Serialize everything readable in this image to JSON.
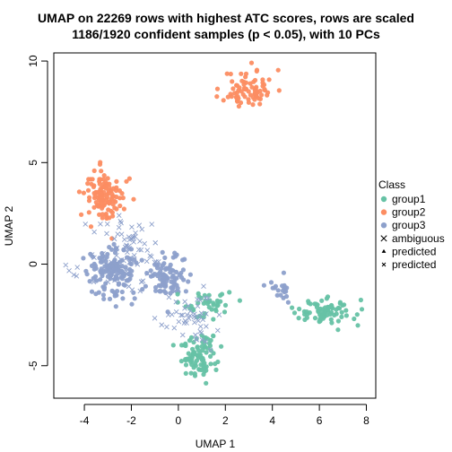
{
  "chart_data": {
    "type": "scatter",
    "title": "UMAP on 22269 rows with highest ATC scores, rows are scaled",
    "subtitle": "1186/1920 confident samples (p < 0.05), with 10 PCs",
    "xlabel": "UMAP 1",
    "ylabel": "UMAP 2",
    "xlim": [
      -5.3,
      8.4
    ],
    "ylim": [
      -6.6,
      10.4
    ],
    "x_ticks": [
      -4,
      -2,
      0,
      2,
      4,
      6,
      8
    ],
    "y_ticks": [
      -5,
      0,
      5,
      10
    ],
    "grid": false,
    "legend_position": "right",
    "legend_title": "Class",
    "legend": [
      {
        "label": "group1",
        "symbol": "circle",
        "color": "#66C2A5"
      },
      {
        "label": "group2",
        "symbol": "circle",
        "color": "#FC8D62"
      },
      {
        "label": "group3",
        "symbol": "circle",
        "color": "#8DA0CB"
      },
      {
        "label": "ambiguous",
        "symbol": "cross",
        "color": "#000000"
      },
      {
        "label": "predicted",
        "symbol": "triangle",
        "color": "#000000"
      },
      {
        "label": "predicted",
        "symbol": "small-cross",
        "color": "#000000"
      }
    ],
    "clusters": [
      {
        "group": "group2",
        "color": "#FC8D62",
        "cx": 3.0,
        "cy": 8.6,
        "sx": 0.9,
        "sy": 0.8,
        "n": 80,
        "seed": 11
      },
      {
        "group": "group2",
        "color": "#FC8D62",
        "cx": -3.1,
        "cy": 3.3,
        "sx": 0.7,
        "sy": 1.1,
        "n": 120,
        "seed": 12
      },
      {
        "group": "group3",
        "color": "#8DA0CB",
        "cx": -2.8,
        "cy": -0.4,
        "sx": 0.9,
        "sy": 1.1,
        "n": 130,
        "seed": 13
      },
      {
        "group": "group3",
        "color": "#8DA0CB",
        "cx": -0.4,
        "cy": -0.6,
        "sx": 0.8,
        "sy": 0.9,
        "n": 90,
        "seed": 14
      },
      {
        "group": "group3",
        "color": "#8DA0CB",
        "cx": 4.4,
        "cy": -1.2,
        "sx": 0.4,
        "sy": 0.5,
        "n": 20,
        "seed": 15
      },
      {
        "group": "group1",
        "color": "#66C2A5",
        "cx": 0.9,
        "cy": -4.5,
        "sx": 0.6,
        "sy": 0.9,
        "n": 90,
        "seed": 16
      },
      {
        "group": "group1",
        "color": "#66C2A5",
        "cx": 6.2,
        "cy": -2.4,
        "sx": 1.0,
        "sy": 0.5,
        "n": 80,
        "seed": 17
      },
      {
        "group": "group1",
        "color": "#66C2A5",
        "cx": 1.2,
        "cy": -2.0,
        "sx": 0.9,
        "sy": 0.6,
        "n": 40,
        "seed": 18
      }
    ],
    "ambiguous": [
      {
        "cx": -2.2,
        "cy": 0.3,
        "sx": 1.4,
        "sy": 1.6,
        "n": 90,
        "seed": 21
      },
      {
        "cx": 0.4,
        "cy": -2.6,
        "sx": 1.0,
        "sy": 1.0,
        "n": 50,
        "seed": 22
      }
    ]
  }
}
